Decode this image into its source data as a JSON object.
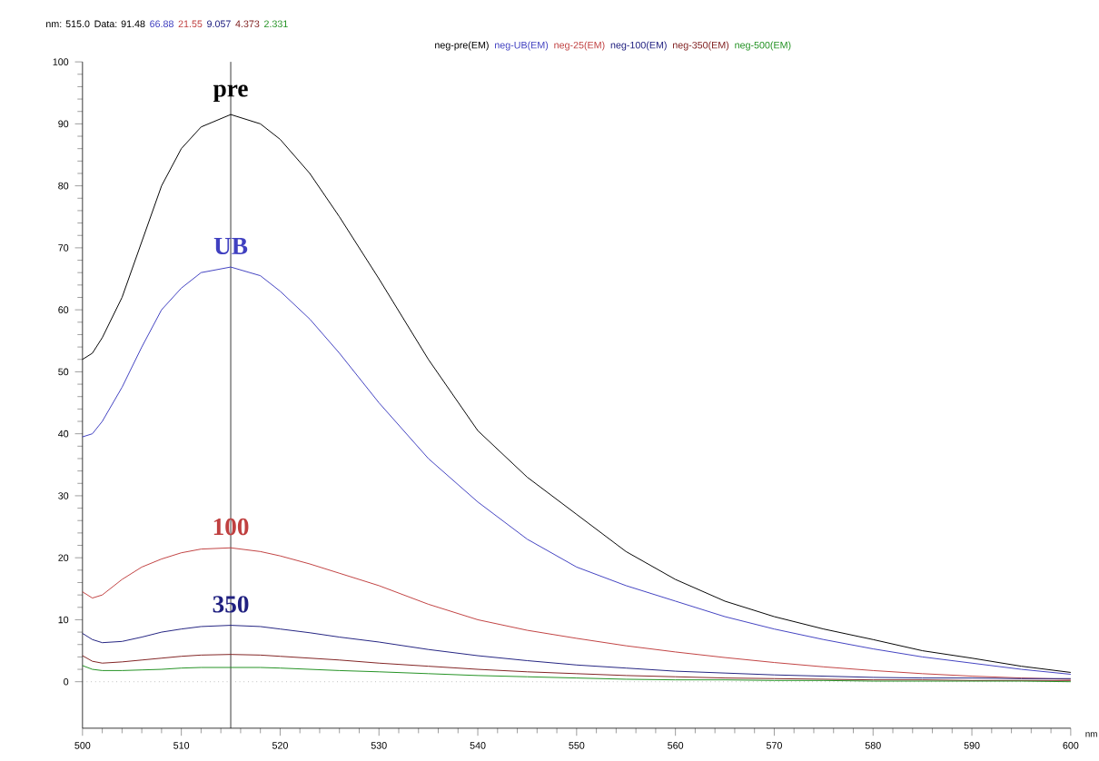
{
  "chart_data": {
    "type": "line",
    "xlabel": "nm",
    "legend": "top",
    "annotations": [
      "nm: 515.0",
      "Data: 91.48",
      "66.88",
      "21.55",
      "9.057",
      "4.373",
      "2.331",
      "pre",
      "UB",
      "100",
      "350"
    ],
    "xlim": [
      500,
      600
    ],
    "xticks": [
      500,
      510,
      520,
      530,
      540,
      550,
      560,
      570,
      580,
      590,
      600
    ],
    "ylim": [
      -7.5,
      100
    ],
    "yticks": [
      0,
      10,
      20,
      30,
      40,
      50,
      60,
      70,
      80,
      90,
      100
    ],
    "ref_lines": [
      {
        "axis": "x",
        "value": 515,
        "color": "#000000",
        "line_style": "solid"
      },
      {
        "axis": "y",
        "value": 0,
        "color": "#999999",
        "line_style": "dotted"
      }
    ],
    "x": [
      500,
      501,
      502,
      504,
      506,
      508,
      510,
      512,
      515,
      518,
      520,
      523,
      526,
      530,
      535,
      540,
      545,
      550,
      555,
      560,
      565,
      570,
      575,
      580,
      585,
      590,
      595,
      600
    ],
    "series": [
      {
        "name": "neg-pre(EM)",
        "color": "#000000",
        "values": [
          52,
          53,
          55.5,
          62,
          71,
          80,
          86,
          89.5,
          91.5,
          90,
          87.5,
          82,
          75,
          65,
          52,
          40.5,
          33,
          27,
          21,
          16.5,
          13,
          10.5,
          8.5,
          6.8,
          5,
          3.8,
          2.5,
          1.5
        ]
      },
      {
        "name": "neg-UB(EM)",
        "color": "#4040c0",
        "values": [
          39.5,
          40,
          42,
          47.5,
          54,
          60,
          63.5,
          66,
          66.9,
          65.5,
          63,
          58.5,
          53,
          45,
          36,
          29,
          23,
          18.5,
          15.5,
          13,
          10.5,
          8.5,
          6.8,
          5.3,
          4,
          3,
          2,
          1.2
        ]
      },
      {
        "name": "neg-25(EM)",
        "color": "#c04040",
        "values": [
          14.5,
          13.5,
          14,
          16.5,
          18.5,
          19.8,
          20.8,
          21.4,
          21.6,
          21,
          20.3,
          19,
          17.5,
          15.5,
          12.5,
          10,
          8.3,
          7,
          5.8,
          4.8,
          3.9,
          3.1,
          2.4,
          1.8,
          1.3,
          0.9,
          0.6,
          0.4
        ]
      },
      {
        "name": "neg-100(EM)",
        "color": "#202080",
        "values": [
          7.8,
          6.8,
          6.3,
          6.5,
          7.2,
          8,
          8.5,
          8.9,
          9.1,
          8.9,
          8.5,
          7.9,
          7.2,
          6.4,
          5.2,
          4.2,
          3.4,
          2.7,
          2.2,
          1.7,
          1.4,
          1.1,
          0.9,
          0.7,
          0.6,
          0.6,
          0.5,
          0.5
        ]
      },
      {
        "name": "neg-350(EM)",
        "color": "#802020",
        "values": [
          4.2,
          3.3,
          3,
          3.2,
          3.5,
          3.8,
          4.1,
          4.3,
          4.4,
          4.3,
          4.1,
          3.8,
          3.5,
          3,
          2.5,
          2,
          1.6,
          1.3,
          1,
          0.8,
          0.6,
          0.5,
          0.4,
          0.3,
          0.3,
          0.2,
          0.2,
          0.2
        ]
      },
      {
        "name": "neg-500(EM)",
        "color": "#209020",
        "values": [
          2.6,
          2,
          1.8,
          1.8,
          1.9,
          2,
          2.2,
          2.3,
          2.3,
          2.3,
          2.2,
          2,
          1.8,
          1.6,
          1.3,
          1,
          0.8,
          0.6,
          0.4,
          0.3,
          0.3,
          0.2,
          0.2,
          0.1,
          0.1,
          0.1,
          0.1,
          0
        ]
      }
    ]
  }
}
